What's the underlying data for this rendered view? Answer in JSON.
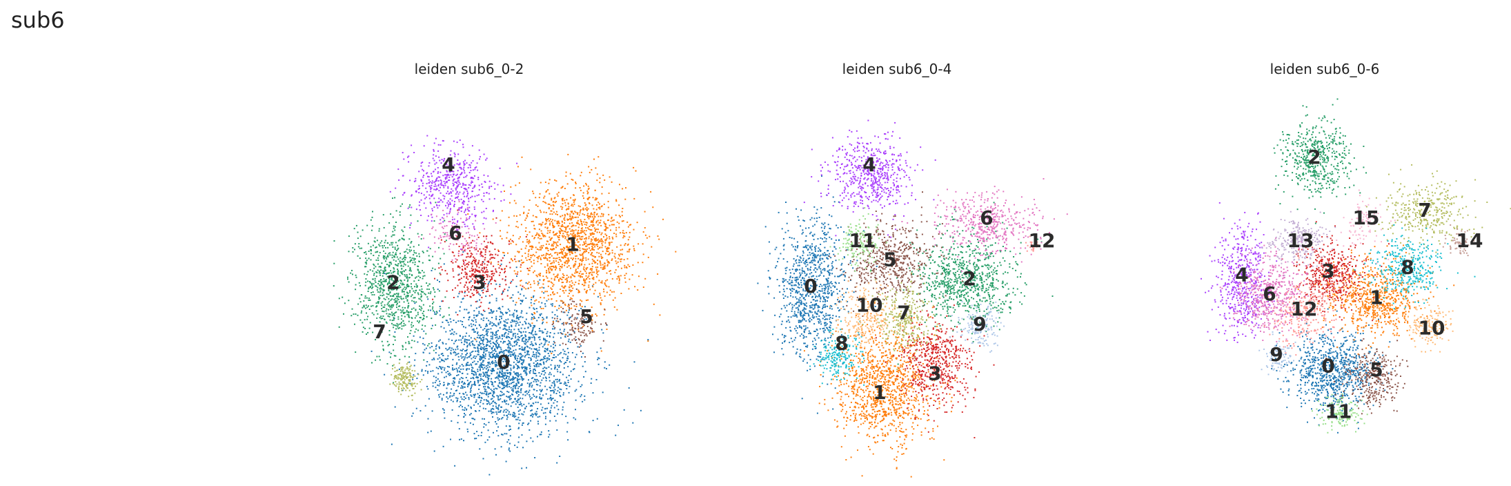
{
  "suptitle": "sub6",
  "colors": {
    "0": "#1f77b4",
    "1": "#ff7f0e",
    "2": "#279e68",
    "3": "#d62728",
    "4": "#aa40fc",
    "5": "#8c564b",
    "6": "#e377c2",
    "7": "#b5bd61",
    "8": "#17becf",
    "9": "#aec7e8",
    "10": "#ffbb78",
    "11": "#98df8a",
    "12": "#ff9896",
    "13": "#c5b0d5",
    "14": "#c49c94",
    "15": "#f7b6d2"
  },
  "chart_data": [
    {
      "type": "scatter",
      "title": "leiden sub6_0-2",
      "legend": "on data",
      "grid": false,
      "categories": [
        "0",
        "1",
        "2",
        "3",
        "4",
        "5",
        "6",
        "7"
      ],
      "clusters": [
        {
          "label": "0",
          "x": 0.6,
          "y": 0.28,
          "sx": 0.11,
          "sy": 0.09,
          "n": 2200
        },
        {
          "label": "1",
          "x": 0.8,
          "y": 0.59,
          "sx": 0.09,
          "sy": 0.08,
          "n": 1500
        },
        {
          "label": "2",
          "x": 0.28,
          "y": 0.49,
          "sx": 0.06,
          "sy": 0.08,
          "n": 900
        },
        {
          "label": "3",
          "x": 0.52,
          "y": 0.53,
          "sx": 0.05,
          "sy": 0.04,
          "n": 350
        },
        {
          "label": "4",
          "x": 0.44,
          "y": 0.75,
          "sx": 0.06,
          "sy": 0.05,
          "n": 500
        },
        {
          "label": "5",
          "x": 0.82,
          "y": 0.38,
          "sx": 0.03,
          "sy": 0.03,
          "n": 120
        },
        {
          "label": "6",
          "x": 0.46,
          "y": 0.62,
          "sx": 0.04,
          "sy": 0.03,
          "n": 120
        },
        {
          "label": "7",
          "x": 0.31,
          "y": 0.24,
          "sx": 0.02,
          "sy": 0.02,
          "n": 150
        }
      ],
      "labels": [
        {
          "text": "0",
          "x": 0.6,
          "y": 0.28
        },
        {
          "text": "1",
          "x": 0.8,
          "y": 0.59
        },
        {
          "text": "2",
          "x": 0.28,
          "y": 0.49
        },
        {
          "text": "3",
          "x": 0.53,
          "y": 0.49
        },
        {
          "text": "4",
          "x": 0.44,
          "y": 0.8
        },
        {
          "text": "5",
          "x": 0.84,
          "y": 0.4
        },
        {
          "text": "6",
          "x": 0.46,
          "y": 0.62
        },
        {
          "text": "7",
          "x": 0.24,
          "y": 0.36
        }
      ]
    },
    {
      "type": "scatter",
      "title": "leiden sub6_0-4",
      "legend": "on data",
      "grid": false,
      "categories": [
        "0",
        "1",
        "2",
        "3",
        "4",
        "5",
        "6",
        "7",
        "8",
        "9",
        "10",
        "11",
        "12"
      ],
      "clusters": [
        {
          "label": "0",
          "x": 0.25,
          "y": 0.48,
          "sx": 0.05,
          "sy": 0.09,
          "n": 900
        },
        {
          "label": "1",
          "x": 0.46,
          "y": 0.22,
          "sx": 0.07,
          "sy": 0.08,
          "n": 1100
        },
        {
          "label": "2",
          "x": 0.7,
          "y": 0.5,
          "sx": 0.07,
          "sy": 0.06,
          "n": 800
        },
        {
          "label": "3",
          "x": 0.61,
          "y": 0.28,
          "sx": 0.05,
          "sy": 0.05,
          "n": 550
        },
        {
          "label": "4",
          "x": 0.42,
          "y": 0.78,
          "sx": 0.06,
          "sy": 0.05,
          "n": 550
        },
        {
          "label": "5",
          "x": 0.48,
          "y": 0.55,
          "sx": 0.06,
          "sy": 0.05,
          "n": 550
        },
        {
          "label": "6",
          "x": 0.76,
          "y": 0.65,
          "sx": 0.07,
          "sy": 0.04,
          "n": 450
        },
        {
          "label": "7",
          "x": 0.52,
          "y": 0.4,
          "sx": 0.04,
          "sy": 0.04,
          "n": 280
        },
        {
          "label": "8",
          "x": 0.33,
          "y": 0.3,
          "sx": 0.03,
          "sy": 0.03,
          "n": 200
        },
        {
          "label": "9",
          "x": 0.74,
          "y": 0.38,
          "sx": 0.03,
          "sy": 0.03,
          "n": 160
        },
        {
          "label": "10",
          "x": 0.4,
          "y": 0.4,
          "sx": 0.04,
          "sy": 0.04,
          "n": 220
        },
        {
          "label": "11",
          "x": 0.39,
          "y": 0.6,
          "sx": 0.03,
          "sy": 0.03,
          "n": 150
        },
        {
          "label": "12",
          "x": 0.89,
          "y": 0.59,
          "sx": 0.01,
          "sy": 0.01,
          "n": 20
        }
      ],
      "labels": [
        {
          "text": "0",
          "x": 0.25,
          "y": 0.48
        },
        {
          "text": "1",
          "x": 0.45,
          "y": 0.2
        },
        {
          "text": "2",
          "x": 0.71,
          "y": 0.5
        },
        {
          "text": "3",
          "x": 0.61,
          "y": 0.25
        },
        {
          "text": "4",
          "x": 0.42,
          "y": 0.8
        },
        {
          "text": "5",
          "x": 0.48,
          "y": 0.55
        },
        {
          "text": "6",
          "x": 0.76,
          "y": 0.66
        },
        {
          "text": "7",
          "x": 0.52,
          "y": 0.41
        },
        {
          "text": "8",
          "x": 0.34,
          "y": 0.33
        },
        {
          "text": "9",
          "x": 0.74,
          "y": 0.38
        },
        {
          "text": "10",
          "x": 0.42,
          "y": 0.43
        },
        {
          "text": "11",
          "x": 0.4,
          "y": 0.6
        },
        {
          "text": "12",
          "x": 0.92,
          "y": 0.6
        }
      ]
    },
    {
      "type": "scatter",
      "title": "leiden sub6_0-6",
      "legend": "on data",
      "grid": false,
      "categories": [
        "0",
        "1",
        "2",
        "3",
        "4",
        "5",
        "6",
        "7",
        "8",
        "9",
        "10",
        "11",
        "12",
        "13",
        "14",
        "15"
      ],
      "clusters": [
        {
          "label": "0",
          "x": 0.52,
          "y": 0.26,
          "sx": 0.06,
          "sy": 0.05,
          "n": 800
        },
        {
          "label": "1",
          "x": 0.64,
          "y": 0.45,
          "sx": 0.07,
          "sy": 0.05,
          "n": 700
        },
        {
          "label": "2",
          "x": 0.47,
          "y": 0.82,
          "sx": 0.05,
          "sy": 0.05,
          "n": 500
        },
        {
          "label": "3",
          "x": 0.51,
          "y": 0.52,
          "sx": 0.05,
          "sy": 0.04,
          "n": 450
        },
        {
          "label": "4",
          "x": 0.26,
          "y": 0.5,
          "sx": 0.04,
          "sy": 0.07,
          "n": 500
        },
        {
          "label": "5",
          "x": 0.64,
          "y": 0.24,
          "sx": 0.04,
          "sy": 0.04,
          "n": 300
        },
        {
          "label": "6",
          "x": 0.34,
          "y": 0.46,
          "sx": 0.05,
          "sy": 0.05,
          "n": 500
        },
        {
          "label": "7",
          "x": 0.79,
          "y": 0.68,
          "sx": 0.06,
          "sy": 0.04,
          "n": 350
        },
        {
          "label": "8",
          "x": 0.74,
          "y": 0.53,
          "sx": 0.05,
          "sy": 0.04,
          "n": 350
        },
        {
          "label": "9",
          "x": 0.36,
          "y": 0.3,
          "sx": 0.02,
          "sy": 0.02,
          "n": 100
        },
        {
          "label": "10",
          "x": 0.8,
          "y": 0.38,
          "sx": 0.03,
          "sy": 0.03,
          "n": 150
        },
        {
          "label": "11",
          "x": 0.54,
          "y": 0.15,
          "sx": 0.03,
          "sy": 0.02,
          "n": 150
        },
        {
          "label": "12",
          "x": 0.44,
          "y": 0.41,
          "sx": 0.04,
          "sy": 0.04,
          "n": 250
        },
        {
          "label": "13",
          "x": 0.42,
          "y": 0.6,
          "sx": 0.04,
          "sy": 0.03,
          "n": 250
        },
        {
          "label": "14",
          "x": 0.89,
          "y": 0.6,
          "sx": 0.02,
          "sy": 0.02,
          "n": 60
        },
        {
          "label": "15",
          "x": 0.61,
          "y": 0.65,
          "sx": 0.03,
          "sy": 0.03,
          "n": 100
        }
      ],
      "labels": [
        {
          "text": "0",
          "x": 0.51,
          "y": 0.27
        },
        {
          "text": "1",
          "x": 0.65,
          "y": 0.45
        },
        {
          "text": "2",
          "x": 0.47,
          "y": 0.82
        },
        {
          "text": "3",
          "x": 0.51,
          "y": 0.52
        },
        {
          "text": "4",
          "x": 0.26,
          "y": 0.51
        },
        {
          "text": "5",
          "x": 0.65,
          "y": 0.26
        },
        {
          "text": "6",
          "x": 0.34,
          "y": 0.46
        },
        {
          "text": "7",
          "x": 0.79,
          "y": 0.68
        },
        {
          "text": "8",
          "x": 0.74,
          "y": 0.53
        },
        {
          "text": "9",
          "x": 0.36,
          "y": 0.3
        },
        {
          "text": "10",
          "x": 0.81,
          "y": 0.37
        },
        {
          "text": "11",
          "x": 0.54,
          "y": 0.15
        },
        {
          "text": "12",
          "x": 0.44,
          "y": 0.42
        },
        {
          "text": "13",
          "x": 0.43,
          "y": 0.6
        },
        {
          "text": "14",
          "x": 0.92,
          "y": 0.6
        },
        {
          "text": "15",
          "x": 0.62,
          "y": 0.66
        }
      ]
    }
  ]
}
